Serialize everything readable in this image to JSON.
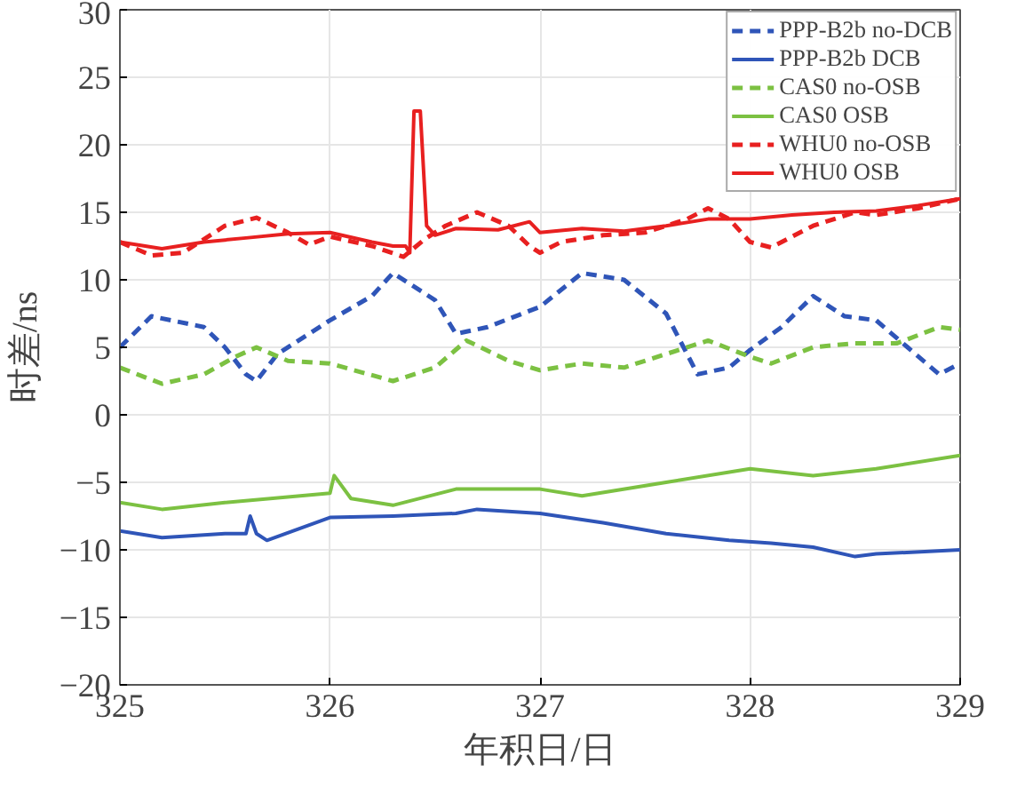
{
  "chart_data": {
    "type": "line",
    "xlabel": "年积日/日",
    "ylabel": "时差/ns",
    "xlim": [
      325,
      329
    ],
    "xticks": [
      325,
      326,
      327,
      328,
      329
    ],
    "ylim": [
      -20,
      30
    ],
    "yticks": [
      -20,
      -15,
      -10,
      -5,
      0,
      5,
      10,
      15,
      20,
      25,
      30
    ],
    "grid": true,
    "legend": "top right",
    "marker": "none",
    "series": [
      {
        "name": "PPP-B2b no-DCB",
        "color": "#2f55b8",
        "line_style": "dashed",
        "x": [
          325,
          325.15,
          325.4,
          325.5,
          325.6,
          325.65,
          325.75,
          326,
          326.2,
          326.3,
          326.5,
          326.6,
          326.75,
          327,
          327.2,
          327.4,
          327.6,
          327.75,
          327.9,
          328,
          328.15,
          328.3,
          328.45,
          328.6,
          328.75,
          328.9,
          329
        ],
        "values": [
          5,
          7.3,
          6.5,
          5,
          3,
          2.5,
          4.5,
          7,
          8.8,
          10.5,
          8.5,
          6,
          6.5,
          8,
          10.5,
          10,
          7.5,
          3,
          3.5,
          4.8,
          6.5,
          8.8,
          7.3,
          7,
          5,
          3,
          3.8
        ]
      },
      {
        "name": "PPP-B2b DCB",
        "color": "#2f55b8",
        "line_style": "solid",
        "x": [
          325,
          325.2,
          325.5,
          325.6,
          325.62,
          325.65,
          325.7,
          326,
          326.3,
          326.6,
          326.7,
          327,
          327.3,
          327.6,
          327.9,
          328.1,
          328.3,
          328.5,
          328.6,
          329
        ],
        "values": [
          -8.6,
          -9.1,
          -8.8,
          -8.8,
          -7.5,
          -8.8,
          -9.3,
          -7.6,
          -7.5,
          -7.3,
          -7,
          -7.3,
          -8,
          -8.8,
          -9.3,
          -9.5,
          -9.8,
          -10.5,
          -10.3,
          -10
        ]
      },
      {
        "name": "CAS0 no-OSB",
        "color": "#7cc142",
        "line_style": "dashed",
        "x": [
          325,
          325.2,
          325.4,
          325.55,
          325.65,
          325.8,
          326,
          326.3,
          326.5,
          326.65,
          326.85,
          327,
          327.2,
          327.4,
          327.6,
          327.8,
          328,
          328.1,
          328.3,
          328.5,
          328.7,
          328.9,
          329
        ],
        "values": [
          3.5,
          2.3,
          3,
          4.3,
          5,
          4,
          3.8,
          2.5,
          3.5,
          5.5,
          4,
          3.3,
          3.8,
          3.5,
          4.5,
          5.5,
          4.3,
          3.8,
          5,
          5.3,
          5.3,
          6.5,
          6.3
        ]
      },
      {
        "name": "CAS0 OSB",
        "color": "#7cc142",
        "line_style": "solid",
        "x": [
          325,
          325.2,
          325.5,
          326,
          326.02,
          326.1,
          326.3,
          326.6,
          327,
          327.2,
          327.6,
          328,
          328.3,
          328.6,
          329
        ],
        "values": [
          -6.5,
          -7,
          -6.5,
          -5.8,
          -4.5,
          -6.2,
          -6.7,
          -5.5,
          -5.5,
          -6,
          -5,
          -4,
          -4.5,
          -4,
          -3
        ]
      },
      {
        "name": "WHU0 no-OSB",
        "color": "#e82020",
        "line_style": "dashed",
        "x": [
          325,
          325.15,
          325.3,
          325.5,
          325.65,
          325.8,
          325.9,
          326,
          326.2,
          326.35,
          326.45,
          326.55,
          326.7,
          326.85,
          326.95,
          327,
          327.1,
          327.3,
          327.5,
          327.7,
          327.8,
          327.9,
          328,
          328.1,
          328.3,
          328.5,
          328.6,
          328.8,
          329
        ],
        "values": [
          12.8,
          11.8,
          12,
          14,
          14.6,
          13.5,
          12.6,
          13.2,
          12.5,
          11.7,
          13,
          14,
          15,
          14,
          12.5,
          12,
          12.8,
          13.3,
          13.5,
          14.5,
          15.3,
          14.5,
          12.8,
          12.4,
          14,
          15,
          14.8,
          15.3,
          16
        ]
      },
      {
        "name": "WHU0 OSB",
        "color": "#e82020",
        "line_style": "solid",
        "x": [
          325,
          325.2,
          325.4,
          325.6,
          325.8,
          326,
          326.2,
          326.3,
          326.36,
          326.38,
          326.4,
          326.43,
          326.46,
          326.5,
          326.6,
          326.8,
          326.95,
          327,
          327.2,
          327.4,
          327.6,
          327.8,
          328,
          328.2,
          328.4,
          328.6,
          328.8,
          329
        ],
        "values": [
          12.8,
          12.3,
          12.8,
          13.1,
          13.4,
          13.5,
          12.8,
          12.5,
          12.5,
          12,
          22.5,
          22.5,
          14,
          13.3,
          13.8,
          13.7,
          14.3,
          13.5,
          13.8,
          13.6,
          14,
          14.5,
          14.5,
          14.8,
          15,
          15.1,
          15.5,
          16
        ]
      }
    ]
  }
}
